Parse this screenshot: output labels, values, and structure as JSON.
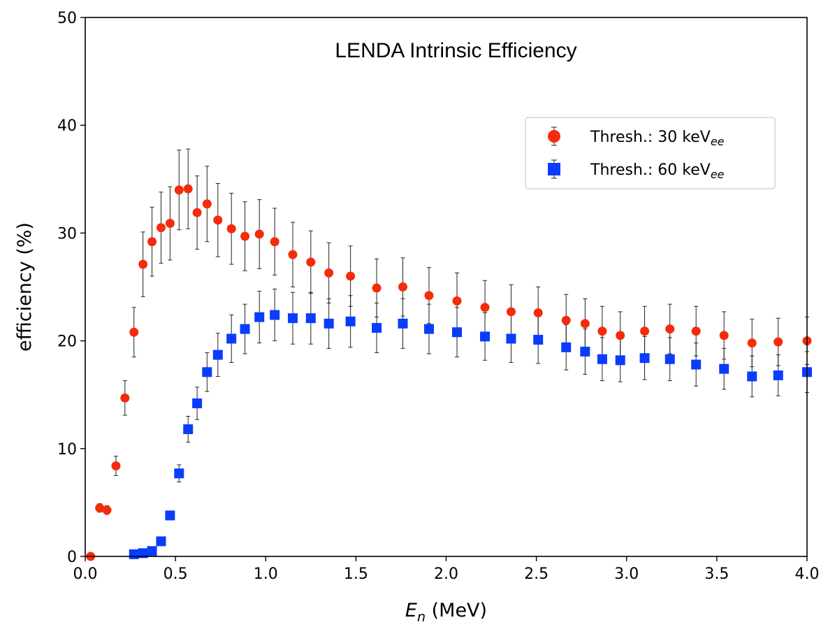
{
  "chart_data": {
    "type": "scatter",
    "title": "LENDA Intrinsic Efficiency",
    "xlabel_symbol": "E",
    "xlabel_sub": "n",
    "xlabel_unit": " (MeV)",
    "ylabel": "efficiency (%)",
    "xlim": [
      0,
      4
    ],
    "ylim": [
      0,
      50
    ],
    "xticks": [
      0.0,
      0.5,
      1.0,
      1.5,
      2.0,
      2.5,
      3.0,
      3.5,
      4.0
    ],
    "xtick_labels": [
      "0.0",
      "0.5",
      "1.0",
      "1.5",
      "2.0",
      "2.5",
      "3.0",
      "3.5",
      "4.0"
    ],
    "yticks": [
      0,
      10,
      20,
      30,
      40,
      50
    ],
    "ytick_labels": [
      "0",
      "10",
      "20",
      "30",
      "40",
      "50"
    ],
    "legend_position": "upper-right",
    "series": [
      {
        "name": "Thresh.: 30 keV",
        "name_sub": "ee",
        "color": "#f42c0c",
        "marker": "circle",
        "x": [
          0.03,
          0.08,
          0.12,
          0.17,
          0.22,
          0.27,
          0.32,
          0.37,
          0.42,
          0.47,
          0.52,
          0.57,
          0.62,
          0.675,
          0.735,
          0.81,
          0.885,
          0.965,
          1.05,
          1.15,
          1.25,
          1.35,
          1.47,
          1.615,
          1.76,
          1.905,
          2.06,
          2.215,
          2.36,
          2.51,
          2.665,
          2.77,
          2.865,
          2.965,
          3.1,
          3.24,
          3.385,
          3.54,
          3.695,
          3.84,
          4.0
        ],
        "y": [
          0.0,
          4.5,
          4.3,
          8.4,
          14.7,
          20.8,
          27.1,
          29.2,
          30.5,
          30.9,
          34.0,
          34.1,
          31.9,
          32.7,
          31.2,
          30.4,
          29.7,
          29.9,
          29.2,
          28.0,
          27.3,
          26.3,
          26.0,
          24.9,
          25.0,
          24.2,
          23.7,
          23.1,
          22.7,
          22.6,
          21.9,
          21.6,
          20.9,
          20.5,
          20.9,
          21.1,
          20.9,
          20.5,
          19.8,
          19.9,
          20.0
        ],
        "yerr": [
          0.0,
          0.4,
          0.4,
          0.9,
          1.6,
          2.3,
          3.0,
          3.2,
          3.3,
          3.4,
          3.7,
          3.7,
          3.4,
          3.5,
          3.4,
          3.3,
          3.2,
          3.2,
          3.1,
          3.0,
          2.9,
          2.8,
          2.8,
          2.7,
          2.7,
          2.6,
          2.6,
          2.5,
          2.5,
          2.4,
          2.4,
          2.3,
          2.3,
          2.2,
          2.3,
          2.3,
          2.3,
          2.2,
          2.2,
          2.2,
          2.2
        ]
      },
      {
        "name": "Thresh.: 60 keV",
        "name_sub": "ee",
        "color": "#0a3cff",
        "marker": "square",
        "x": [
          0.27,
          0.32,
          0.37,
          0.42,
          0.47,
          0.52,
          0.57,
          0.62,
          0.675,
          0.735,
          0.81,
          0.885,
          0.965,
          1.05,
          1.15,
          1.25,
          1.35,
          1.47,
          1.615,
          1.76,
          1.905,
          2.06,
          2.215,
          2.36,
          2.51,
          2.665,
          2.77,
          2.865,
          2.965,
          3.1,
          3.24,
          3.385,
          3.54,
          3.695,
          3.84,
          4.0
        ],
        "y": [
          0.2,
          0.3,
          0.5,
          1.4,
          3.8,
          7.7,
          11.8,
          14.2,
          17.1,
          18.7,
          20.2,
          21.1,
          22.2,
          22.4,
          22.1,
          22.1,
          21.6,
          21.8,
          21.2,
          21.6,
          21.1,
          20.8,
          20.4,
          20.2,
          20.1,
          19.4,
          19.0,
          18.3,
          18.2,
          18.4,
          18.3,
          17.8,
          17.4,
          16.7,
          16.8,
          17.1
        ],
        "yerr": [
          0.0,
          0.0,
          0.1,
          0.2,
          0.4,
          0.8,
          1.2,
          1.5,
          1.8,
          2.0,
          2.2,
          2.3,
          2.4,
          2.4,
          2.4,
          2.4,
          2.3,
          2.4,
          2.3,
          2.3,
          2.3,
          2.3,
          2.2,
          2.2,
          2.2,
          2.1,
          2.1,
          2.0,
          2.0,
          2.0,
          2.0,
          2.0,
          1.9,
          1.9,
          1.9,
          1.9
        ]
      }
    ]
  }
}
